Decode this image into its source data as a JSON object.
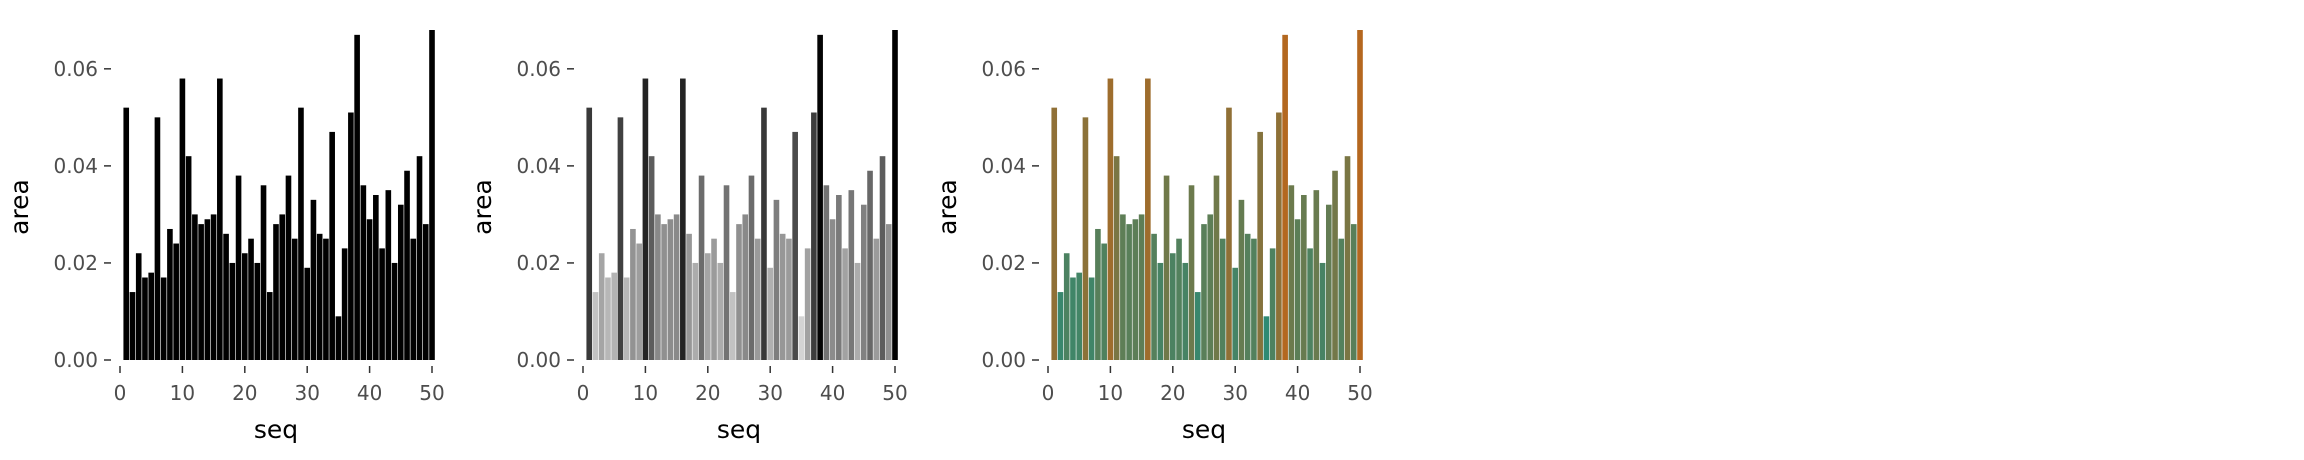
{
  "chart_data": [
    {
      "type": "bar",
      "panel": "black",
      "xlabel": "seq",
      "ylabel": "area",
      "xlim": [
        0,
        50
      ],
      "ylim": [
        0,
        0.068
      ],
      "xticks": [
        "0",
        "10",
        "20",
        "30",
        "40",
        "50"
      ],
      "yticks": [
        "0.00",
        "0.02",
        "0.04",
        "0.06"
      ],
      "grid": false,
      "fill": "single black",
      "x": [
        1,
        2,
        3,
        4,
        5,
        6,
        7,
        8,
        9,
        10,
        11,
        12,
        13,
        14,
        15,
        16,
        17,
        18,
        19,
        20,
        21,
        22,
        23,
        24,
        25,
        26,
        27,
        28,
        29,
        30,
        31,
        32,
        33,
        34,
        35,
        36,
        37,
        38,
        39,
        40,
        41,
        42,
        43,
        44,
        45,
        46,
        47,
        48,
        49,
        50
      ],
      "values": [
        0.052,
        0.014,
        0.022,
        0.017,
        0.018,
        0.05,
        0.017,
        0.027,
        0.024,
        0.058,
        0.042,
        0.03,
        0.028,
        0.029,
        0.03,
        0.058,
        0.026,
        0.02,
        0.038,
        0.022,
        0.025,
        0.02,
        0.036,
        0.014,
        0.028,
        0.03,
        0.038,
        0.025,
        0.052,
        0.019,
        0.033,
        0.026,
        0.025,
        0.047,
        0.009,
        0.023,
        0.051,
        0.067,
        0.036,
        0.029,
        0.034,
        0.023,
        0.035,
        0.02,
        0.032,
        0.039,
        0.025,
        0.042,
        0.028,
        0.068
      ]
    },
    {
      "type": "bar",
      "panel": "gray",
      "xlabel": "seq",
      "ylabel": "area",
      "xlim": [
        0,
        50
      ],
      "ylim": [
        0,
        0.068
      ],
      "xticks": [
        "0",
        "10",
        "20",
        "30",
        "40",
        "50"
      ],
      "yticks": [
        "0.00",
        "0.02",
        "0.04",
        "0.06"
      ],
      "grid": false,
      "fill": "grayscale by area (low = light gray, high = black)",
      "colors": {
        "low": "#d4d4d4",
        "high": "#000000"
      }
    },
    {
      "type": "bar",
      "panel": "colored",
      "xlabel": "seq",
      "ylabel": "area",
      "xlim": [
        0,
        50
      ],
      "ylim": [
        0,
        0.068
      ],
      "xticks": [
        "0",
        "10",
        "20",
        "30",
        "40",
        "50"
      ],
      "yticks": [
        "0.00",
        "0.02",
        "0.04",
        "0.06"
      ],
      "grid": false,
      "fill": "color by area (low = teal green, high = orange brown)",
      "colors": {
        "low": "#2e8a74",
        "high": "#b5671f"
      }
    }
  ]
}
